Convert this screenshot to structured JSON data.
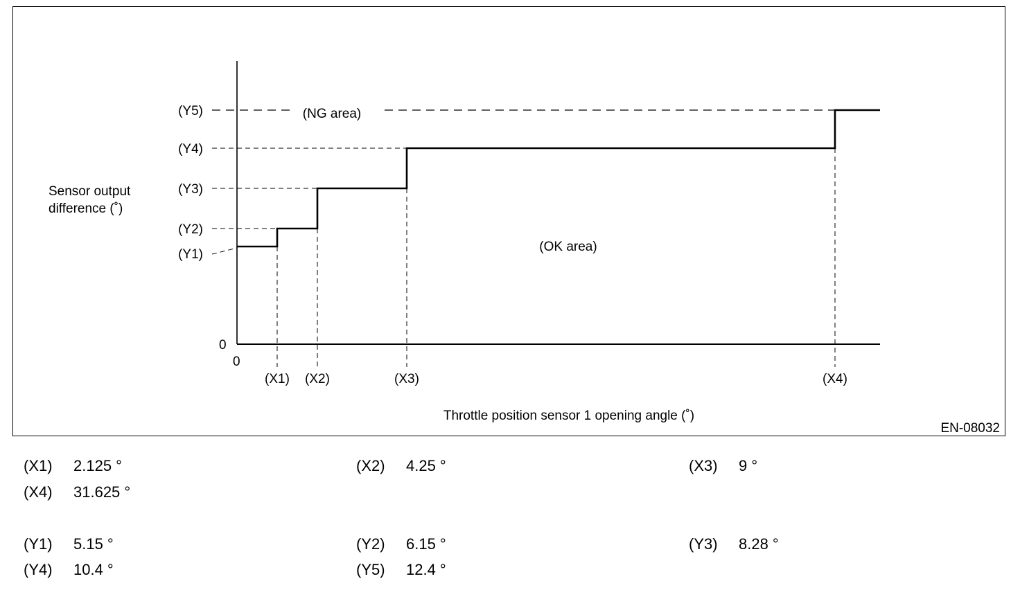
{
  "chart_data": {
    "type": "line",
    "step": true,
    "ylabel_lines": [
      "Sensor output",
      "difference (˚)"
    ],
    "xlabel": "Throttle position sensor 1 opening angle (˚)",
    "origin_x_label": "0",
    "origin_y_label": "0",
    "x_ticks": [
      {
        "label": "(X1)",
        "value": 2.125
      },
      {
        "label": "(X2)",
        "value": 4.25
      },
      {
        "label": "(X3)",
        "value": 9
      },
      {
        "label": "(X4)",
        "value": 31.625
      }
    ],
    "y_ticks": [
      {
        "label": "(Y1)",
        "value": 5.15
      },
      {
        "label": "(Y2)",
        "value": 6.15
      },
      {
        "label": "(Y3)",
        "value": 8.28
      },
      {
        "label": "(Y4)",
        "value": 10.4
      },
      {
        "label": "(Y5)",
        "value": 12.4
      }
    ],
    "steps": [
      {
        "x": 0,
        "y": 5.15
      },
      {
        "x": 2.125,
        "y": 6.15
      },
      {
        "x": 4.25,
        "y": 8.28
      },
      {
        "x": 9,
        "y": 10.4
      },
      {
        "x": 31.625,
        "y": 12.4
      }
    ],
    "annotations": {
      "ng_area": "(NG area)",
      "ok_area": "(OK area)"
    },
    "figure_code": "EN-08032"
  },
  "legend": {
    "x_rows": [
      [
        {
          "key": "(X1)",
          "value": "2.125 °"
        },
        {
          "key": "(X2)",
          "value": "4.25 °"
        },
        {
          "key": "(X3)",
          "value": "9 °"
        }
      ],
      [
        {
          "key": "(X4)",
          "value": "31.625 °"
        }
      ]
    ],
    "y_rows": [
      [
        {
          "key": "(Y1)",
          "value": "5.15 °"
        },
        {
          "key": "(Y2)",
          "value": "6.15 °"
        },
        {
          "key": "(Y3)",
          "value": "8.28 °"
        }
      ],
      [
        {
          "key": "(Y4)",
          "value": "10.4 °"
        },
        {
          "key": "(Y5)",
          "value": "12.4 °"
        }
      ]
    ]
  }
}
